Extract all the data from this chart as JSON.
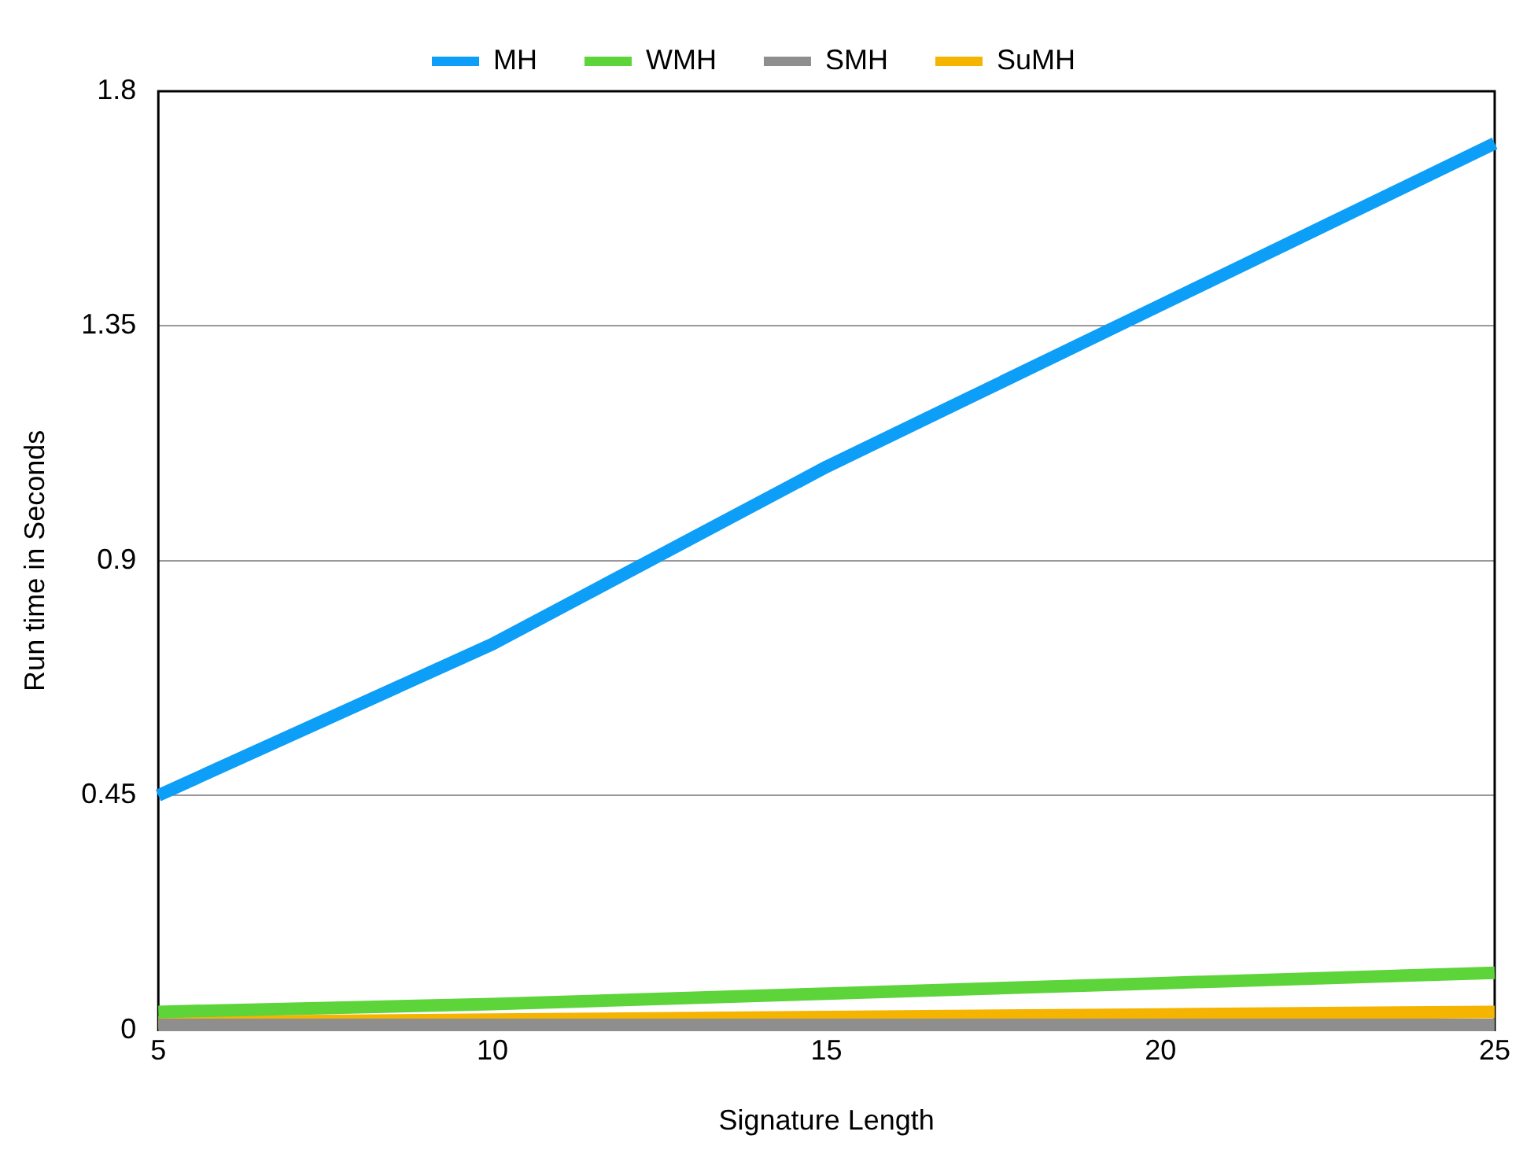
{
  "chart_data": {
    "type": "line",
    "xlabel": "Signature Length",
    "ylabel": "Run time in Seconds",
    "x": [
      5,
      10,
      15,
      20,
      25
    ],
    "series": [
      {
        "name": "MH",
        "color": "#0d9ef7",
        "values": [
          0.45,
          0.74,
          1.08,
          1.39,
          1.7
        ]
      },
      {
        "name": "WMH",
        "color": "#5cd43a",
        "values": [
          0.035,
          0.05,
          0.07,
          0.09,
          0.11
        ]
      },
      {
        "name": "SMH",
        "color": "#8e8e8e",
        "values": [
          0.01,
          0.01,
          0.01,
          0.01,
          0.01
        ]
      },
      {
        "name": "SuMH",
        "color": "#f5b400",
        "values": [
          0.015,
          0.02,
          0.025,
          0.03,
          0.035
        ]
      }
    ],
    "xlim": [
      5,
      25
    ],
    "xticks": [
      5,
      10,
      15,
      20,
      25
    ],
    "ylim": [
      0,
      1.8
    ],
    "yticks": [
      0,
      0.45,
      0.9,
      1.35,
      1.8
    ],
    "grid": "y",
    "legend": "top",
    "marker": "none",
    "line_style": "solid"
  }
}
